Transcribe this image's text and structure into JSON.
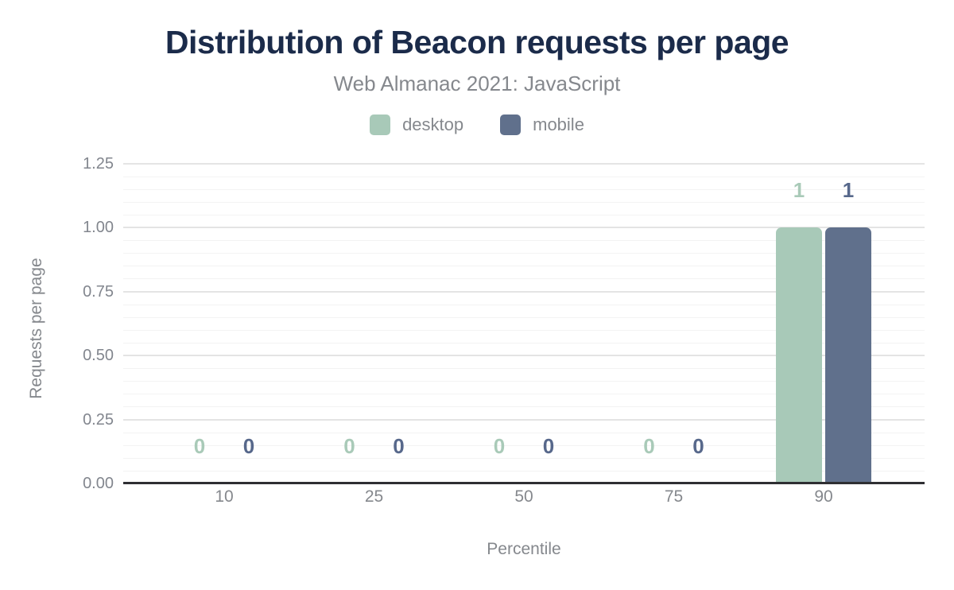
{
  "header": {
    "title": "Distribution of Beacon requests per page",
    "subtitle": "Web Almanac 2021: JavaScript"
  },
  "chart_data": {
    "type": "bar",
    "title": "Distribution of Beacon requests per page",
    "subtitle": "Web Almanac 2021: JavaScript",
    "xlabel": "Percentile",
    "ylabel": "Requests per page",
    "categories": [
      "10",
      "25",
      "50",
      "75",
      "90"
    ],
    "series": [
      {
        "name": "desktop",
        "color": "#a8c9b8",
        "label_color": "#a9cab8",
        "values": [
          0,
          0,
          0,
          0,
          1
        ]
      },
      {
        "name": "mobile",
        "color": "#60708c",
        "label_color": "#57688b",
        "values": [
          0,
          0,
          0,
          0,
          1
        ]
      }
    ],
    "ylim": [
      0,
      1.25
    ],
    "y_major_ticks": [
      "0.00",
      "0.25",
      "0.50",
      "0.75",
      "1.00",
      "1.25"
    ],
    "y_major_step": 0.25,
    "y_minor_step": 0.05,
    "grid": "horizontal-major-and-minor",
    "legend_position": "top",
    "axis_colors": {
      "baseline": "#2f2f33",
      "major_grid": "#e4e4e4",
      "minor_grid": "#f3f3f3",
      "tick_text": "#85888d"
    }
  }
}
